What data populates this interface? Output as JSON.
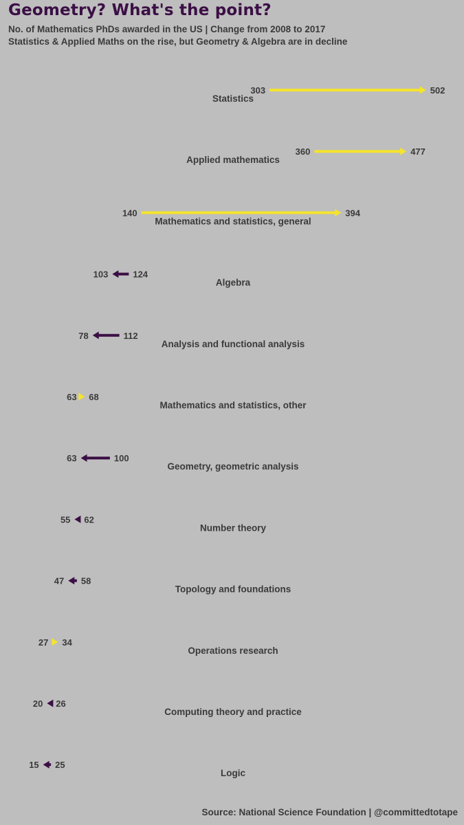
{
  "title": "Geometry? What's the point?",
  "subtitle_line1": "No. of Mathematics PhDs awarded in the US | Change from 2008 to 2017",
  "subtitle_line2": "Statistics & Applied Maths on the rise, but Geometry & Algebra are in decline",
  "source": "Source: National Science Foundation | @committedtotape",
  "colors": {
    "increase": "#f5e42d",
    "decrease": "#3b0f45",
    "background": "#bebebe",
    "text": "#3a3a3a"
  },
  "chart_data": {
    "type": "arrow-dumbbell",
    "title": "Geometry? What's the point?",
    "years": [
      "2008",
      "2017"
    ],
    "xlim": [
      0,
      520
    ],
    "categories": [
      {
        "label": "Statistics",
        "start": 303,
        "end": 502
      },
      {
        "label": "Applied mathematics",
        "start": 360,
        "end": 477
      },
      {
        "label": "Mathematics and statistics, general",
        "start": 140,
        "end": 394
      },
      {
        "label": "Algebra",
        "start": 124,
        "end": 103
      },
      {
        "label": "Analysis and functional analysis",
        "start": 112,
        "end": 78
      },
      {
        "label": "Mathematics and statistics, other",
        "start": 63,
        "end": 68
      },
      {
        "label": "Geometry, geometric analysis",
        "start": 100,
        "end": 63
      },
      {
        "label": "Number theory",
        "start": 62,
        "end": 55
      },
      {
        "label": "Topology and foundations",
        "start": 58,
        "end": 47
      },
      {
        "label": "Operations research",
        "start": 27,
        "end": 34
      },
      {
        "label": "Computing theory and practice",
        "start": 26,
        "end": 20
      },
      {
        "label": "Logic",
        "start": 25,
        "end": 15
      }
    ]
  }
}
